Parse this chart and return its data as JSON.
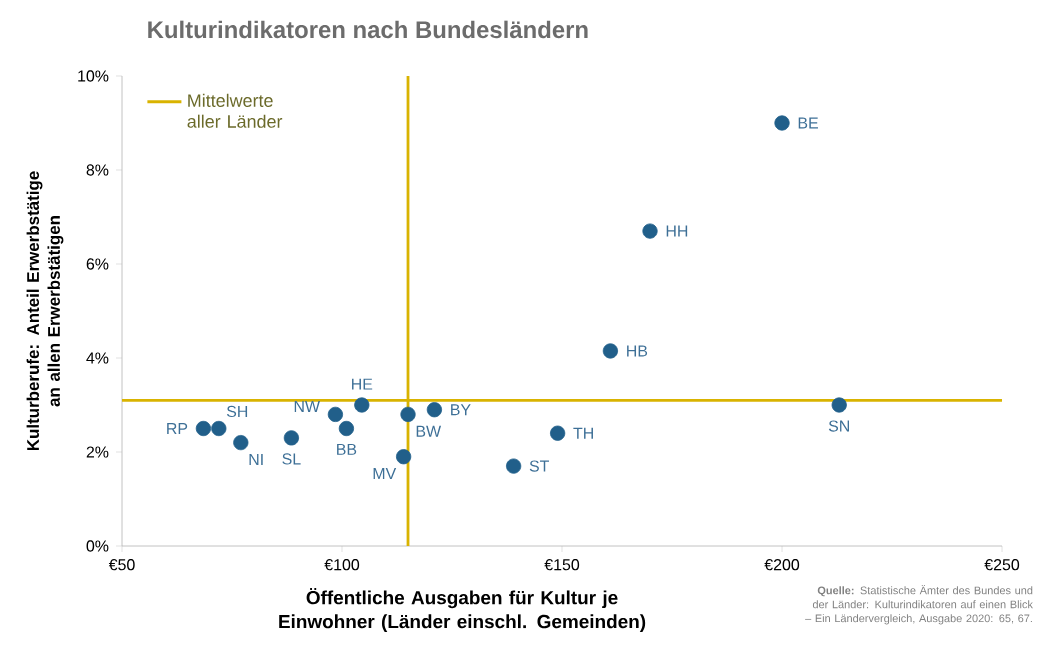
{
  "chart_data": {
    "type": "scatter",
    "title": "Kulturindikatoren nach Bundesländern",
    "xlabel": "Öffentliche Ausgaben für Kultur je Einwohner (Länder einschl. Gemeinden)",
    "ylabel": "Kulturberufe: Anteil Erwerbstätige an allen Erwerbstätigen",
    "x": [
      200,
      170,
      161,
      213,
      149,
      139,
      68.5,
      72,
      77,
      88.5,
      98.5,
      101,
      104.5,
      115,
      114,
      121
    ],
    "series": [
      {
        "color": "#215f8a",
        "values": [
          9.0,
          6.7,
          4.15,
          3.0,
          2.4,
          1.7,
          2.5,
          2.5,
          2.2,
          2.3,
          2.8,
          2.5,
          3.0,
          2.8,
          1.9,
          2.9
        ]
      }
    ],
    "marker": "circle",
    "xlim": [
      50,
      250
    ],
    "ylim": [
      0,
      10
    ],
    "xticks": [
      {
        "value": 50,
        "label": "€50"
      },
      {
        "value": 100,
        "label": "€100"
      },
      {
        "value": 150,
        "label": "€150"
      },
      {
        "value": 200,
        "label": "€200"
      },
      {
        "value": 250,
        "label": "€250"
      }
    ],
    "yticks": [
      {
        "value": 0,
        "label": "0%"
      },
      {
        "value": 2,
        "label": "2%"
      },
      {
        "value": 4,
        "label": "4%"
      },
      {
        "value": 6,
        "label": "6%"
      },
      {
        "value": 8,
        "label": "8%"
      },
      {
        "value": 10,
        "label": "10%"
      }
    ],
    "ref_lines": [
      {
        "axis": "y",
        "value": 3.1,
        "label": "Mittelwerte aller Länder",
        "color": "#d9b300"
      },
      {
        "axis": "x",
        "value": 115,
        "color": "#d9b300"
      }
    ],
    "legend": "top left",
    "grid": false,
    "annotations": [
      {
        "text": "BE",
        "x": 200,
        "y": 9.0
      },
      {
        "text": "HH",
        "x": 170,
        "y": 6.7
      },
      {
        "text": "HB",
        "x": 161,
        "y": 4.15
      },
      {
        "text": "SN",
        "x": 213,
        "y": 3.0
      },
      {
        "text": "TH",
        "x": 149,
        "y": 2.4
      },
      {
        "text": "ST",
        "x": 139,
        "y": 1.7
      },
      {
        "text": "RP",
        "x": 68.5,
        "y": 2.5
      },
      {
        "text": "SH",
        "x": 72,
        "y": 2.5
      },
      {
        "text": "NI",
        "x": 77,
        "y": 2.2
      },
      {
        "text": "SL",
        "x": 88.5,
        "y": 2.3
      },
      {
        "text": "NW",
        "x": 98.5,
        "y": 2.8
      },
      {
        "text": "BB",
        "x": 101,
        "y": 2.5
      },
      {
        "text": "HE",
        "x": 104.5,
        "y": 3.0
      },
      {
        "text": "BW",
        "x": 115,
        "y": 2.8
      },
      {
        "text": "MV",
        "x": 114,
        "y": 1.9
      },
      {
        "text": "BY",
        "x": 121,
        "y": 2.9
      },
      "**Quelle:** Statistische Ämter des Bundes und der Länder: Kulturindikatoren auf einen Blick – Ein Ländervergleich, Ausgabe 2020: 65, 67."
    ]
  }
}
